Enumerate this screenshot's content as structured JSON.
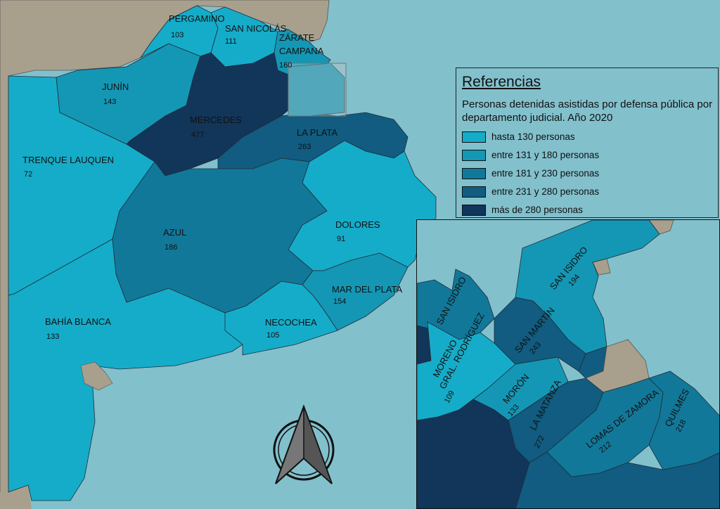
{
  "legend": {
    "title": "Referencias",
    "subtitle": "Personas detenidas asistidas por defensa pública por departamento judicial. Año 2020",
    "items": [
      {
        "label": "hasta 130 personas",
        "color": "#15acc9"
      },
      {
        "label": "entre 131 y 180 personas",
        "color": "#1497b4"
      },
      {
        "label": "entre 181 y 230 personas",
        "color": "#127899"
      },
      {
        "label": "entre 231 y 280 personas",
        "color": "#115c80"
      },
      {
        "label": "más de 280 personas",
        "color": "#12355a"
      }
    ]
  },
  "colors": {
    "sea": "#82c0cc",
    "neighbor": "#a8a08c",
    "border": "#1f2d3a"
  },
  "main_map": {
    "districts": [
      {
        "name": "PERGAMINO",
        "value": "103"
      },
      {
        "name": "SAN NICOLÁS",
        "value": "111"
      },
      {
        "name": "ZÁRATE CAMPANA",
        "line1": "ZÁRATE",
        "line2": "CAMPANA",
        "value": "160"
      },
      {
        "name": "JUNÍN",
        "value": "143"
      },
      {
        "name": "MERCEDES",
        "value": "477"
      },
      {
        "name": "LA PLATA",
        "value": "263"
      },
      {
        "name": "TRENQUE LAUQUEN",
        "value": "72"
      },
      {
        "name": "AZUL",
        "value": "186"
      },
      {
        "name": "DOLORES",
        "value": "91"
      },
      {
        "name": "MAR DEL PLATA",
        "value": "154"
      },
      {
        "name": "NECOCHEA",
        "value": "105"
      },
      {
        "name": "BAHÍA BLANCA",
        "value": "133"
      }
    ]
  },
  "inset_map": {
    "districts": [
      {
        "name": "SAN ISIDRO",
        "value": "194"
      },
      {
        "name": "SAN ISIDRO (oeste)",
        "label": "SAN ISIDRO"
      },
      {
        "name": "SAN MARTÍN",
        "value": "243"
      },
      {
        "name": "MORENO GRAL. RODRÍGUEZ",
        "line1": "MORENO",
        "line2": "GRAL. RODRÍGUEZ",
        "value": "109"
      },
      {
        "name": "MORÓN",
        "value": "133"
      },
      {
        "name": "LA MATANZA",
        "value": "272"
      },
      {
        "name": "LOMAS DE ZAMORA",
        "value": "212"
      },
      {
        "name": "QUILMES",
        "value": "218"
      }
    ]
  },
  "north_arrow": {
    "icon": "north-arrow-icon"
  }
}
